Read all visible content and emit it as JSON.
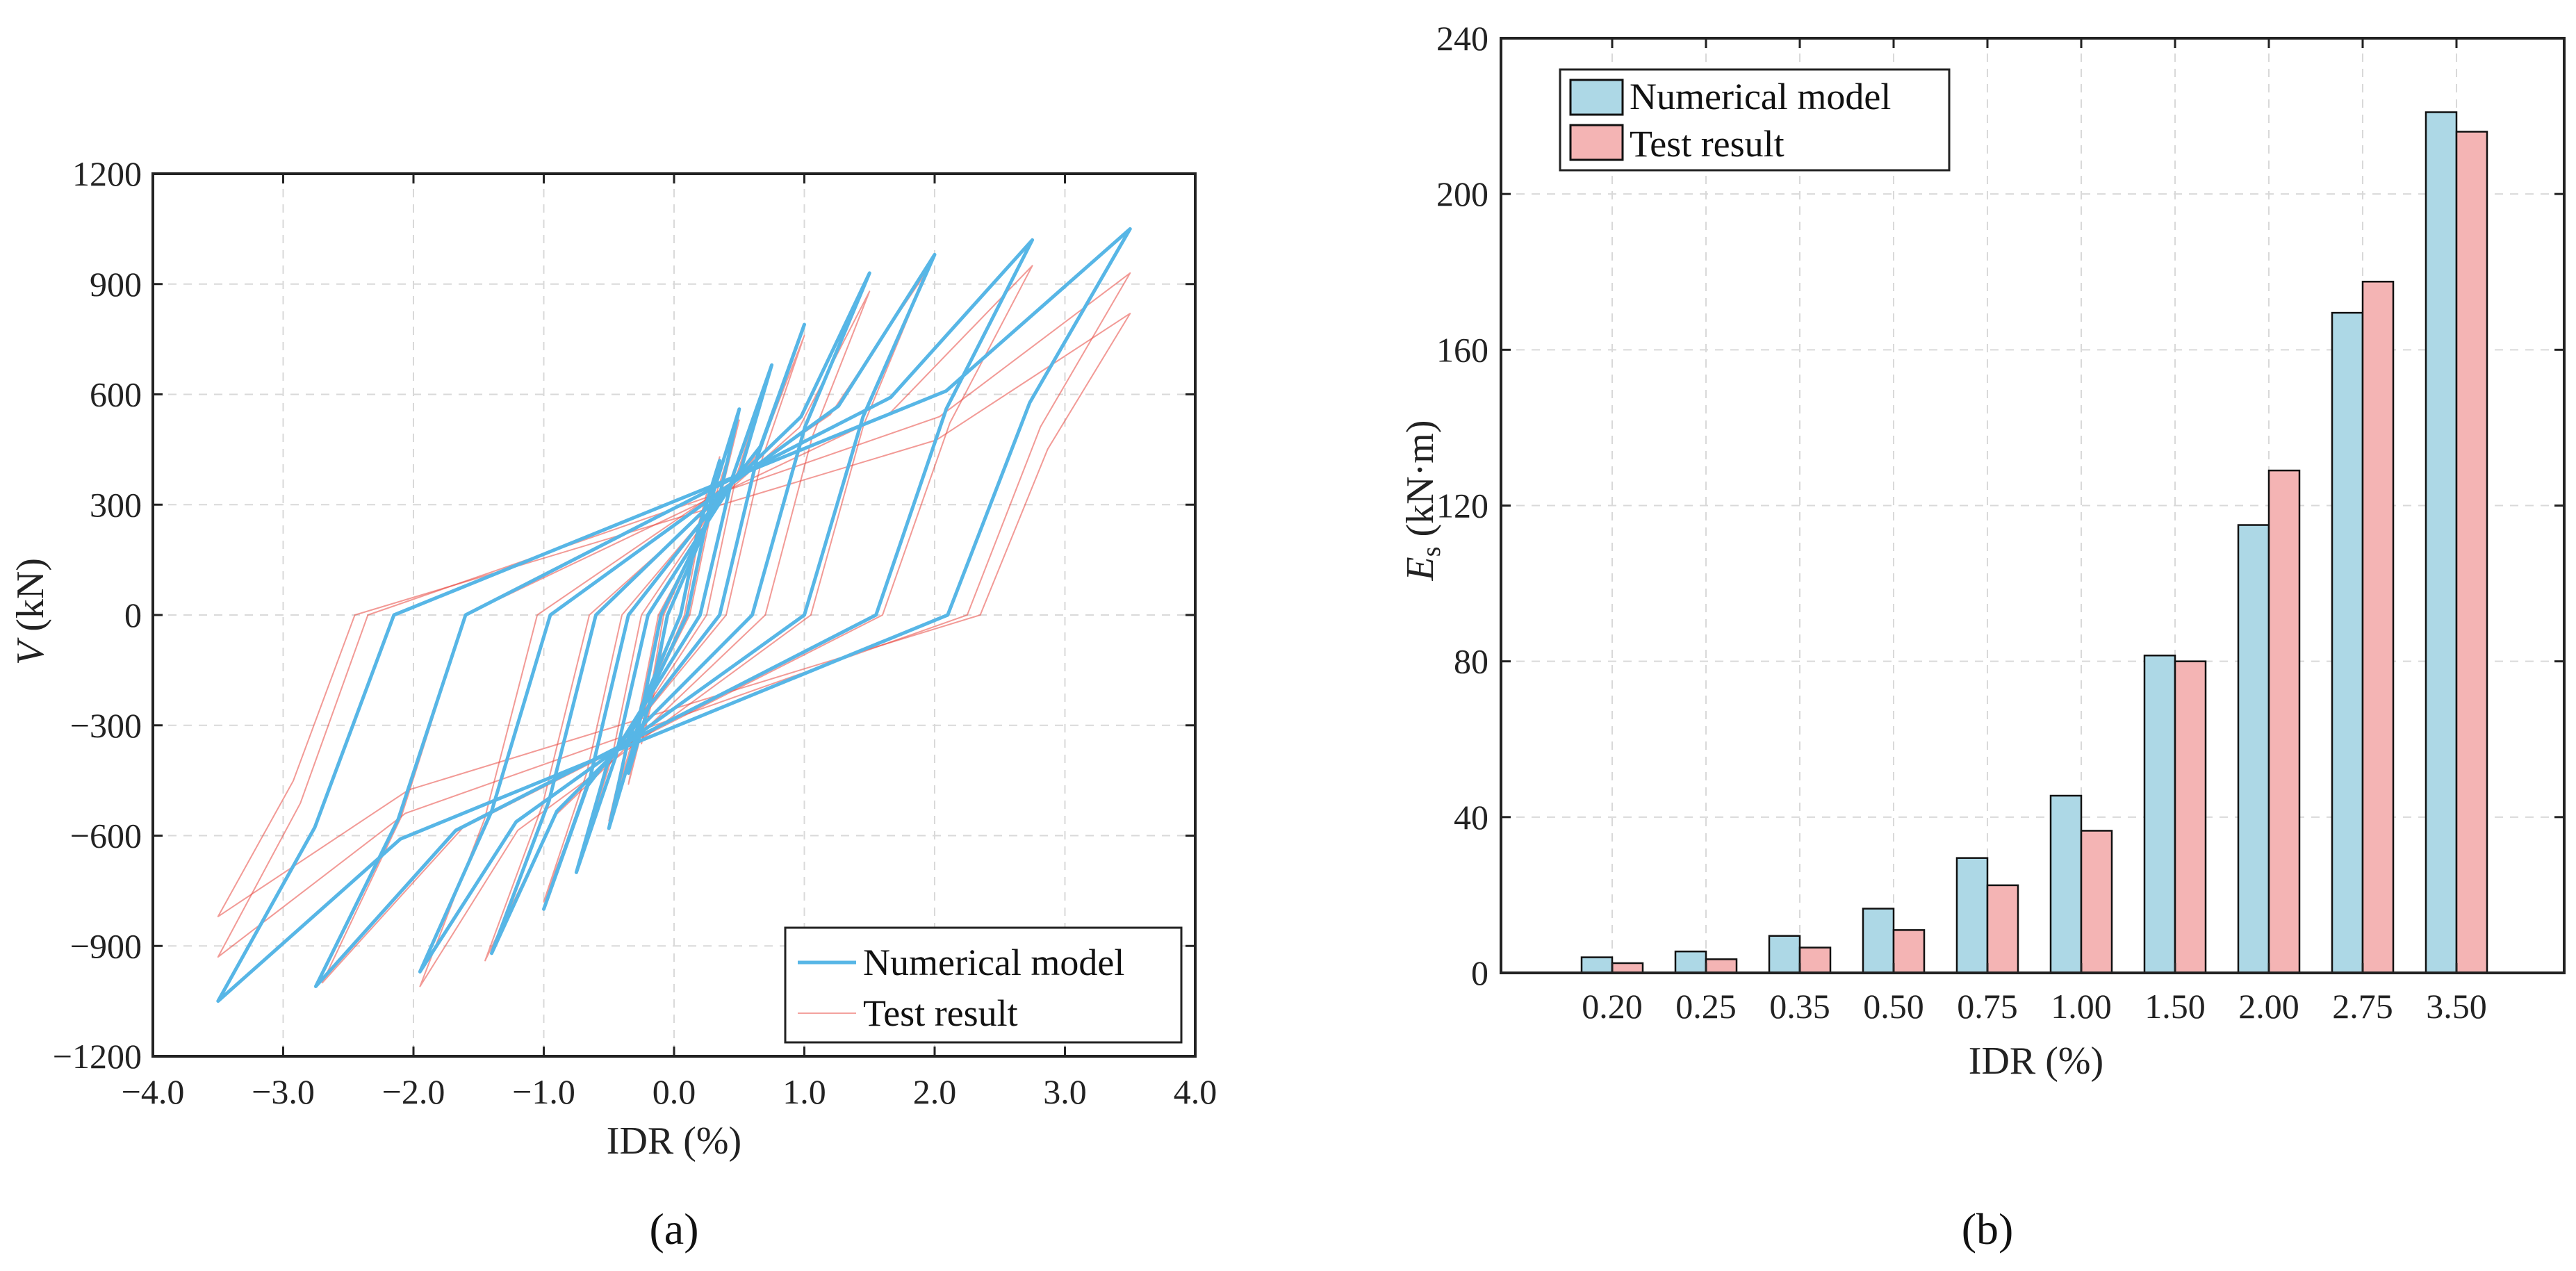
{
  "panels": {
    "a": {
      "label": "(a)"
    },
    "b": {
      "label": "(b)"
    }
  },
  "colors": {
    "numerical": "#57b6e6",
    "test": "#e8473f",
    "bar_numerical": "#add8e6",
    "bar_test": "#f4b4b4",
    "grid": "#d9d9d9"
  },
  "chart_data": [
    {
      "type": "line",
      "panel": "a",
      "xlabel": "IDR (%)",
      "ylabel_italic": "V",
      "ylabel_rest": " (kN)",
      "xlim": [
        -4.0,
        4.0
      ],
      "ylim": [
        -1200,
        1200
      ],
      "xticks": [
        -4.0,
        -3.0,
        -2.0,
        -1.0,
        0.0,
        1.0,
        2.0,
        3.0,
        4.0
      ],
      "xtick_labels": [
        "−4.0",
        "−3.0",
        "−2.0",
        "−1.0",
        "0.0",
        "1.0",
        "2.0",
        "3.0",
        "4.0"
      ],
      "yticks": [
        -1200,
        -900,
        -600,
        -300,
        0,
        300,
        600,
        900,
        1200
      ],
      "ytick_labels": [
        "−1200",
        "−900",
        "−600",
        "−300",
        "0",
        "300",
        "600",
        "900",
        "1200"
      ],
      "grid": true,
      "legend": "bottom-right",
      "series": [
        {
          "name": "Numerical model",
          "loops": [
            {
              "peak_pos": [
                0.35,
                420
              ],
              "peak_neg": [
                -0.35,
                -430
              ],
              "res_pos": 0.05,
              "res_neg": -0.05
            },
            {
              "peak_pos": [
                0.5,
                560
              ],
              "peak_neg": [
                -0.5,
                -580
              ],
              "res_pos": 0.1,
              "res_neg": -0.1
            },
            {
              "peak_pos": [
                0.75,
                680
              ],
              "peak_neg": [
                -0.75,
                -700
              ],
              "res_pos": 0.2,
              "res_neg": -0.2
            },
            {
              "peak_pos": [
                1.0,
                790
              ],
              "peak_neg": [
                -1.0,
                -800
              ],
              "res_pos": 0.35,
              "res_neg": -0.35
            },
            {
              "peak_pos": [
                1.5,
                930
              ],
              "peak_neg": [
                -1.4,
                -920
              ],
              "res_pos": 0.6,
              "res_neg": -0.6
            },
            {
              "peak_pos": [
                2.0,
                980
              ],
              "peak_neg": [
                -1.95,
                -970
              ],
              "res_pos": 1.0,
              "res_neg": -0.95
            },
            {
              "peak_pos": [
                2.75,
                1020
              ],
              "peak_neg": [
                -2.75,
                -1010
              ],
              "res_pos": 1.55,
              "res_neg": -1.6
            },
            {
              "peak_pos": [
                3.5,
                1050
              ],
              "peak_neg": [
                -3.5,
                -1050
              ],
              "res_pos": 2.1,
              "res_neg": -2.15
            }
          ]
        },
        {
          "name": "Test result",
          "loops": [
            {
              "peak_pos": [
                0.25,
                330
              ],
              "peak_neg": [
                -0.25,
                -350
              ],
              "res_pos": 0.05,
              "res_neg": -0.05
            },
            {
              "peak_pos": [
                0.35,
                430
              ],
              "peak_neg": [
                -0.35,
                -460
              ],
              "res_pos": 0.08,
              "res_neg": -0.08
            },
            {
              "peak_pos": [
                0.5,
                530
              ],
              "peak_neg": [
                -0.5,
                -560
              ],
              "res_pos": 0.12,
              "res_neg": -0.12
            },
            {
              "peak_pos": [
                0.75,
                680
              ],
              "peak_neg": [
                -0.75,
                -700
              ],
              "res_pos": 0.25,
              "res_neg": -0.25
            },
            {
              "peak_pos": [
                1.0,
                760
              ],
              "peak_neg": [
                -1.0,
                -780
              ],
              "res_pos": 0.4,
              "res_neg": -0.4
            },
            {
              "peak_pos": [
                1.5,
                880
              ],
              "peak_neg": [
                -1.45,
                -940
              ],
              "res_pos": 0.7,
              "res_neg": -0.65
            },
            {
              "peak_pos": [
                1.95,
                940
              ],
              "peak_neg": [
                -1.95,
                -1010
              ],
              "res_pos": 1.05,
              "res_neg": -1.05
            },
            {
              "peak_pos": [
                2.75,
                950
              ],
              "peak_neg": [
                -2.7,
                -1000
              ],
              "res_pos": 1.6,
              "res_neg": -1.6
            },
            {
              "peak_pos": [
                3.5,
                930
              ],
              "peak_neg": [
                -3.5,
                -930
              ],
              "res_pos": 2.25,
              "res_neg": -2.35
            },
            {
              "peak_pos": [
                3.5,
                820
              ],
              "peak_neg": [
                -3.5,
                -820
              ],
              "res_pos": 2.35,
              "res_neg": -2.45
            }
          ]
        }
      ]
    },
    {
      "type": "bar",
      "panel": "b",
      "xlabel": "IDR (%)",
      "ylabel_italic": "E",
      "ylabel_sub": "s",
      "ylabel_rest": " (kN·m)",
      "categories": [
        "0.20",
        "0.25",
        "0.35",
        "0.50",
        "0.75",
        "1.00",
        "1.50",
        "2.00",
        "2.75",
        "3.50"
      ],
      "ylim": [
        0,
        240
      ],
      "yticks": [
        0,
        40,
        80,
        120,
        160,
        200,
        240
      ],
      "ytick_labels": [
        "0",
        "40",
        "80",
        "120",
        "160",
        "200",
        "240"
      ],
      "grid": true,
      "legend": "top-left",
      "series": [
        {
          "name": "Numerical model",
          "values": [
            4,
            5.5,
            9.5,
            16.5,
            29.5,
            45.5,
            81.5,
            115,
            169.5,
            221
          ]
        },
        {
          "name": "Test result",
          "values": [
            2.5,
            3.5,
            6.5,
            11,
            22.5,
            36.5,
            80,
            129,
            177.5,
            216
          ]
        }
      ]
    }
  ]
}
